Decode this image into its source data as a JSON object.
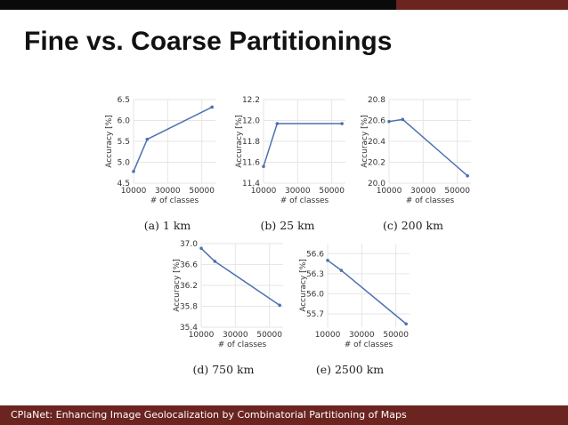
{
  "slide": {
    "title": "Fine vs. Coarse Partitionings",
    "footer": "CPlaNet: Enhancing Image Geolocalization by Combinatorial Partitioning of Maps"
  },
  "colors": {
    "line": "#4c72b0",
    "grid": "#e6e6e6",
    "footer": "#6b2420",
    "topbar": "#0a0a0a"
  },
  "chart_data": [
    {
      "type": "line",
      "caption": "(a) 1 km",
      "xlabel": "# of classes",
      "ylabel": "Accuracy [%]",
      "xlim": [
        10000,
        58000
      ],
      "ylim": [
        4.5,
        6.5
      ],
      "xticks": [
        "10000",
        "30000",
        "50000"
      ],
      "yticks": [
        "4.5",
        "5.0",
        "5.5",
        "6.0",
        "6.5"
      ],
      "grid": true,
      "x": [
        10000,
        18000,
        56000
      ],
      "y": [
        4.78,
        5.55,
        6.32
      ]
    },
    {
      "type": "line",
      "caption": "(b) 25 km",
      "xlabel": "# of classes",
      "ylabel": "Accuracy [%]",
      "xlim": [
        10000,
        58000
      ],
      "ylim": [
        11.4,
        12.2
      ],
      "xticks": [
        "10000",
        "30000",
        "50000"
      ],
      "yticks": [
        "11.4",
        "11.6",
        "11.8",
        "12.0",
        "12.2"
      ],
      "grid": true,
      "x": [
        10000,
        18000,
        56000
      ],
      "y": [
        11.56,
        11.97,
        11.97
      ]
    },
    {
      "type": "line",
      "caption": "(c) 200 km",
      "xlabel": "# of classes",
      "ylabel": "Accuracy [%]",
      "xlim": [
        10000,
        58000
      ],
      "ylim": [
        20.0,
        20.8
      ],
      "xticks": [
        "10000",
        "30000",
        "50000"
      ],
      "yticks": [
        "20.0",
        "20.2",
        "20.4",
        "20.6",
        "20.8"
      ],
      "grid": true,
      "x": [
        10000,
        18000,
        56000
      ],
      "y": [
        20.59,
        20.61,
        20.07
      ]
    },
    {
      "type": "line",
      "caption": "(d) 750 km",
      "xlabel": "# of classes",
      "ylabel": "Accuracy [%]",
      "xlim": [
        10000,
        58000
      ],
      "ylim": [
        35.4,
        37.0
      ],
      "xticks": [
        "10000",
        "30000",
        "50000"
      ],
      "yticks": [
        "35.4",
        "35.8",
        "36.2",
        "36.6",
        "37.0"
      ],
      "grid": true,
      "x": [
        10000,
        18000,
        56000
      ],
      "y": [
        36.91,
        36.66,
        35.82
      ]
    },
    {
      "type": "line",
      "caption": "(e) 2500 km",
      "xlabel": "# of classes",
      "ylabel": "Accuracy [%]",
      "xlim": [
        10000,
        58000
      ],
      "ylim": [
        55.5,
        56.75
      ],
      "xticks": [
        "10000",
        "30000",
        "50000"
      ],
      "yticks": [
        "55.7",
        "56.0",
        "56.3",
        "56.6"
      ],
      "grid": true,
      "x": [
        10000,
        18000,
        56000
      ],
      "y": [
        56.5,
        56.35,
        55.55
      ]
    }
  ]
}
